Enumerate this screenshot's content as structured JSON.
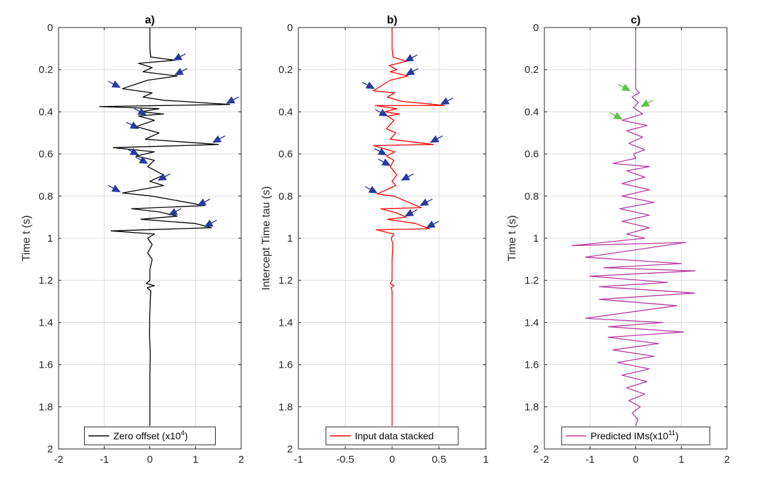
{
  "chart_data": [
    {
      "type": "line",
      "title": "a)",
      "xlabel": "",
      "ylabel": "Time t (s)",
      "xlim": [
        -2,
        2
      ],
      "ylim": [
        0,
        2
      ],
      "y_reversed": true,
      "grid": true,
      "x_ticks": [
        -2,
        -1,
        0,
        1,
        2
      ],
      "x_tick_labels": [
        "-2",
        "-1",
        "0",
        "1",
        "2"
      ],
      "y_ticks": [
        0,
        0.2,
        0.4,
        0.6,
        0.8,
        1,
        1.2,
        1.4,
        1.6,
        1.8,
        2
      ],
      "y_tick_labels": [
        "0",
        "0.2",
        "0.4",
        "0.6",
        "0.8",
        "1",
        "1.2",
        "1.4",
        "1.6",
        "1.8",
        "2"
      ],
      "legend": {
        "label_main": "Zero offset (x10",
        "label_sup": "4",
        "label_end": ")",
        "position": "bottom-center"
      },
      "series": [
        {
          "name": "Zero offset",
          "color": "#000000",
          "points": [
            [
              0.0,
              0.0
            ],
            [
              0.0,
              0.1
            ],
            [
              0.02,
              0.14
            ],
            [
              0.55,
              0.155
            ],
            [
              -0.25,
              0.17
            ],
            [
              0.05,
              0.19
            ],
            [
              -0.15,
              0.21
            ],
            [
              0.6,
              0.23
            ],
            [
              -0.05,
              0.25
            ],
            [
              -0.6,
              0.29
            ],
            [
              0.05,
              0.31
            ],
            [
              -0.15,
              0.33
            ],
            [
              0.3,
              0.345
            ],
            [
              1.75,
              0.365
            ],
            [
              -1.1,
              0.375
            ],
            [
              0.2,
              0.385
            ],
            [
              -0.2,
              0.4
            ],
            [
              0.3,
              0.41
            ],
            [
              -0.25,
              0.42
            ],
            [
              0.1,
              0.44
            ],
            [
              -0.3,
              0.47
            ],
            [
              0.2,
              0.5
            ],
            [
              -0.1,
              0.53
            ],
            [
              1.5,
              0.555
            ],
            [
              -0.8,
              0.57
            ],
            [
              0.1,
              0.59
            ],
            [
              -0.3,
              0.61
            ],
            [
              0.1,
              0.63
            ],
            [
              -0.05,
              0.66
            ],
            [
              0.3,
              0.7
            ],
            [
              0.0,
              0.73
            ],
            [
              0.3,
              0.75
            ],
            [
              -0.6,
              0.785
            ],
            [
              0.05,
              0.8
            ],
            [
              1.2,
              0.845
            ],
            [
              -0.4,
              0.86
            ],
            [
              0.2,
              0.875
            ],
            [
              0.6,
              0.895
            ],
            [
              -0.2,
              0.91
            ],
            [
              1.0,
              0.93
            ],
            [
              1.35,
              0.95
            ],
            [
              -0.85,
              0.965
            ],
            [
              0.1,
              0.98
            ],
            [
              -0.05,
              1.0
            ],
            [
              0.05,
              1.03
            ],
            [
              -0.05,
              1.07
            ],
            [
              0.05,
              1.1
            ],
            [
              0.0,
              1.15
            ],
            [
              0.0,
              1.2
            ],
            [
              -0.08,
              1.215
            ],
            [
              0.1,
              1.225
            ],
            [
              -0.06,
              1.235
            ],
            [
              0.02,
              1.25
            ],
            [
              0.0,
              1.35
            ],
            [
              -0.01,
              1.45
            ],
            [
              0.01,
              1.55
            ],
            [
              0.0,
              1.65
            ],
            [
              0.0,
              1.8
            ],
            [
              0.0,
              1.89
            ]
          ]
        }
      ],
      "annotations": [
        {
          "type": "arrow",
          "color": "#2b3a9c",
          "x": 0.52,
          "y": 0.155,
          "dir": "from-upper-right"
        },
        {
          "type": "arrow",
          "color": "#2b3a9c",
          "x": 0.55,
          "y": 0.225,
          "dir": "from-upper-right"
        },
        {
          "type": "arrow",
          "color": "#2b3a9c",
          "x": -0.65,
          "y": 0.285,
          "dir": "from-upper-left"
        },
        {
          "type": "arrow",
          "color": "#2b3a9c",
          "x": 1.68,
          "y": 0.36,
          "dir": "from-upper-right"
        },
        {
          "type": "arrow",
          "color": "#2b3a9c",
          "x": -0.08,
          "y": 0.415,
          "dir": "from-upper-left"
        },
        {
          "type": "arrow",
          "color": "#2b3a9c",
          "x": -0.25,
          "y": 0.48,
          "dir": "from-upper-left"
        },
        {
          "type": "arrow",
          "color": "#2b3a9c",
          "x": 1.38,
          "y": 0.545,
          "dir": "from-upper-right"
        },
        {
          "type": "arrow",
          "color": "#2b3a9c",
          "x": -0.25,
          "y": 0.605,
          "dir": "from-upper-left"
        },
        {
          "type": "arrow",
          "color": "#2b3a9c",
          "x": -0.05,
          "y": 0.645,
          "dir": "from-upper-left"
        },
        {
          "type": "arrow",
          "color": "#2b3a9c",
          "x": 0.18,
          "y": 0.725,
          "dir": "from-upper-right"
        },
        {
          "type": "arrow",
          "color": "#2b3a9c",
          "x": -0.65,
          "y": 0.78,
          "dir": "from-upper-left"
        },
        {
          "type": "arrow",
          "color": "#2b3a9c",
          "x": 1.05,
          "y": 0.845,
          "dir": "from-upper-right"
        },
        {
          "type": "arrow",
          "color": "#2b3a9c",
          "x": 0.42,
          "y": 0.89,
          "dir": "from-upper-right"
        },
        {
          "type": "arrow",
          "color": "#2b3a9c",
          "x": 1.2,
          "y": 0.945,
          "dir": "from-upper-right"
        }
      ]
    },
    {
      "type": "line",
      "title": "b)",
      "xlabel": "",
      "ylabel": "Intercept Time tau (s)",
      "xlim": [
        -1,
        1
      ],
      "ylim": [
        0,
        2
      ],
      "y_reversed": true,
      "grid": true,
      "x_ticks": [
        -1,
        -0.5,
        0,
        0.5,
        1
      ],
      "x_tick_labels": [
        "-1",
        "-0.5",
        "0",
        "0.5",
        "1"
      ],
      "y_ticks": [
        0,
        0.2,
        0.4,
        0.6,
        0.8,
        1,
        1.2,
        1.4,
        1.6,
        1.8,
        2
      ],
      "y_tick_labels": [
        "0",
        "0.2",
        "0.4",
        "0.6",
        "0.8",
        "1",
        "1.2",
        "1.4",
        "1.6",
        "1.8",
        "2"
      ],
      "legend": {
        "label_main": "Input data stacked",
        "label_sup": "",
        "label_end": "",
        "position": "bottom-center"
      },
      "series": [
        {
          "name": "Input data stacked",
          "color": "#ff0000",
          "points": [
            [
              0.0,
              0.0
            ],
            [
              0.0,
              0.1
            ],
            [
              0.01,
              0.14
            ],
            [
              0.15,
              0.16
            ],
            [
              -0.03,
              0.18
            ],
            [
              0.05,
              0.2
            ],
            [
              -0.02,
              0.21
            ],
            [
              0.17,
              0.23
            ],
            [
              -0.02,
              0.25
            ],
            [
              -0.2,
              0.3
            ],
            [
              0.03,
              0.31
            ],
            [
              -0.05,
              0.33
            ],
            [
              0.1,
              0.35
            ],
            [
              0.56,
              0.37
            ],
            [
              -0.18,
              0.37
            ],
            [
              0.05,
              0.385
            ],
            [
              -0.08,
              0.4
            ],
            [
              0.08,
              0.41
            ],
            [
              -0.05,
              0.42
            ],
            [
              0.02,
              0.44
            ],
            [
              -0.06,
              0.48
            ],
            [
              0.04,
              0.5
            ],
            [
              -0.02,
              0.53
            ],
            [
              0.44,
              0.555
            ],
            [
              -0.2,
              0.56
            ],
            [
              0.03,
              0.59
            ],
            [
              -0.06,
              0.61
            ],
            [
              0.02,
              0.63
            ],
            [
              -0.02,
              0.66
            ],
            [
              0.05,
              0.7
            ],
            [
              0.0,
              0.73
            ],
            [
              0.04,
              0.75
            ],
            [
              -0.16,
              0.79
            ],
            [
              0.02,
              0.8
            ],
            [
              0.31,
              0.855
            ],
            [
              -0.12,
              0.86
            ],
            [
              0.05,
              0.88
            ],
            [
              0.15,
              0.9
            ],
            [
              -0.05,
              0.91
            ],
            [
              0.25,
              0.93
            ],
            [
              0.4,
              0.955
            ],
            [
              -0.17,
              0.96
            ],
            [
              0.02,
              0.98
            ],
            [
              -0.01,
              1.0
            ],
            [
              0.01,
              1.03
            ],
            [
              0.0,
              1.1
            ],
            [
              0.0,
              1.2
            ],
            [
              -0.02,
              1.215
            ],
            [
              0.02,
              1.225
            ],
            [
              -0.01,
              1.235
            ],
            [
              0.0,
              1.25
            ],
            [
              0.0,
              1.4
            ],
            [
              0.0,
              1.6
            ],
            [
              0.0,
              1.89
            ]
          ]
        }
      ],
      "annotations": [
        {
          "type": "arrow",
          "color": "#2b3a9c",
          "x": 0.14,
          "y": 0.16,
          "dir": "from-upper-right"
        },
        {
          "type": "arrow",
          "color": "#2b3a9c",
          "x": 0.15,
          "y": 0.225,
          "dir": "from-upper-right"
        },
        {
          "type": "arrow",
          "color": "#2b3a9c",
          "x": -0.19,
          "y": 0.29,
          "dir": "from-upper-left"
        },
        {
          "type": "arrow",
          "color": "#2b3a9c",
          "x": 0.52,
          "y": 0.365,
          "dir": "from-upper-right"
        },
        {
          "type": "arrow",
          "color": "#2b3a9c",
          "x": -0.05,
          "y": 0.42,
          "dir": "from-upper-left"
        },
        {
          "type": "arrow",
          "color": "#2b3a9c",
          "x": 0.41,
          "y": 0.545,
          "dir": "from-upper-right"
        },
        {
          "type": "arrow",
          "color": "#2b3a9c",
          "x": -0.06,
          "y": 0.605,
          "dir": "from-upper-left"
        },
        {
          "type": "arrow",
          "color": "#2b3a9c",
          "x": -0.02,
          "y": 0.655,
          "dir": "from-upper-left"
        },
        {
          "type": "arrow",
          "color": "#2b3a9c",
          "x": 0.1,
          "y": 0.725,
          "dir": "from-upper-right"
        },
        {
          "type": "arrow",
          "color": "#2b3a9c",
          "x": -0.16,
          "y": 0.785,
          "dir": "from-upper-left"
        },
        {
          "type": "arrow",
          "color": "#2b3a9c",
          "x": 0.3,
          "y": 0.845,
          "dir": "from-upper-right"
        },
        {
          "type": "arrow",
          "color": "#2b3a9c",
          "x": 0.14,
          "y": 0.895,
          "dir": "from-upper-right"
        },
        {
          "type": "arrow",
          "color": "#2b3a9c",
          "x": 0.37,
          "y": 0.95,
          "dir": "from-upper-right"
        }
      ]
    },
    {
      "type": "line",
      "title": "c)",
      "xlabel": "",
      "ylabel": "Time t (s)",
      "xlim": [
        -2,
        2
      ],
      "ylim": [
        0,
        2
      ],
      "y_reversed": true,
      "grid": true,
      "x_ticks": [
        -2,
        -1,
        0,
        1,
        2
      ],
      "x_tick_labels": [
        "-2",
        "-1",
        "0",
        "1",
        "2"
      ],
      "y_ticks": [
        0,
        0.2,
        0.4,
        0.6,
        0.8,
        1,
        1.2,
        1.4,
        1.6,
        1.8,
        2
      ],
      "y_tick_labels": [
        "0",
        "0.2",
        "0.4",
        "0.6",
        "0.8",
        "1",
        "1.2",
        "1.4",
        "1.6",
        "1.8",
        "2"
      ],
      "legend": {
        "label_main": "Predicted IMs(x10",
        "label_sup": "11",
        "label_end": ")",
        "position": "bottom-center"
      },
      "series": [
        {
          "name": "Predicted IMs",
          "color": "#b5399f",
          "points": [
            [
              0.0,
              0.0
            ],
            [
              0.0,
              0.29
            ],
            [
              0.08,
              0.31
            ],
            [
              -0.08,
              0.33
            ],
            [
              0.06,
              0.355
            ],
            [
              -0.05,
              0.38
            ],
            [
              0.15,
              0.41
            ],
            [
              -0.3,
              0.44
            ],
            [
              0.25,
              0.465
            ],
            [
              -0.2,
              0.49
            ],
            [
              0.15,
              0.52
            ],
            [
              -0.15,
              0.55
            ],
            [
              0.2,
              0.58
            ],
            [
              -0.05,
              0.6
            ],
            [
              0.0,
              0.62
            ],
            [
              -0.5,
              0.645
            ],
            [
              0.3,
              0.66
            ],
            [
              -0.2,
              0.68
            ],
            [
              0.2,
              0.71
            ],
            [
              -0.3,
              0.74
            ],
            [
              0.3,
              0.77
            ],
            [
              -0.3,
              0.8
            ],
            [
              0.4,
              0.83
            ],
            [
              -0.35,
              0.86
            ],
            [
              0.3,
              0.89
            ],
            [
              -0.3,
              0.92
            ],
            [
              0.3,
              0.95
            ],
            [
              -0.2,
              0.98
            ],
            [
              0.2,
              1.0
            ],
            [
              -1.4,
              1.035
            ],
            [
              1.1,
              1.02
            ],
            [
              -1.1,
              1.09
            ],
            [
              1.0,
              1.12
            ],
            [
              -0.7,
              1.14
            ],
            [
              1.3,
              1.155
            ],
            [
              -1.0,
              1.18
            ],
            [
              0.7,
              1.21
            ],
            [
              -0.8,
              1.23
            ],
            [
              1.3,
              1.26
            ],
            [
              -0.8,
              1.29
            ],
            [
              0.9,
              1.32
            ],
            [
              -1.1,
              1.38
            ],
            [
              0.6,
              1.4
            ],
            [
              -0.6,
              1.42
            ],
            [
              1.05,
              1.445
            ],
            [
              -0.6,
              1.47
            ],
            [
              0.5,
              1.5
            ],
            [
              -0.5,
              1.53
            ],
            [
              0.4,
              1.56
            ],
            [
              -0.4,
              1.59
            ],
            [
              0.3,
              1.62
            ],
            [
              -0.3,
              1.65
            ],
            [
              0.25,
              1.68
            ],
            [
              -0.2,
              1.71
            ],
            [
              0.2,
              1.74
            ],
            [
              -0.15,
              1.77
            ],
            [
              0.1,
              1.8
            ],
            [
              -0.08,
              1.83
            ],
            [
              0.05,
              1.86
            ],
            [
              0.0,
              1.89
            ]
          ]
        }
      ],
      "annotations": [
        {
          "type": "arrow",
          "color": "#5fc34b",
          "x": -0.12,
          "y": 0.3,
          "dir": "from-upper-left"
        },
        {
          "type": "arrow",
          "color": "#5fc34b",
          "x": 0.12,
          "y": 0.375,
          "dir": "from-upper-right"
        },
        {
          "type": "arrow",
          "color": "#5fc34b",
          "x": -0.3,
          "y": 0.435,
          "dir": "from-upper-left"
        }
      ]
    }
  ]
}
